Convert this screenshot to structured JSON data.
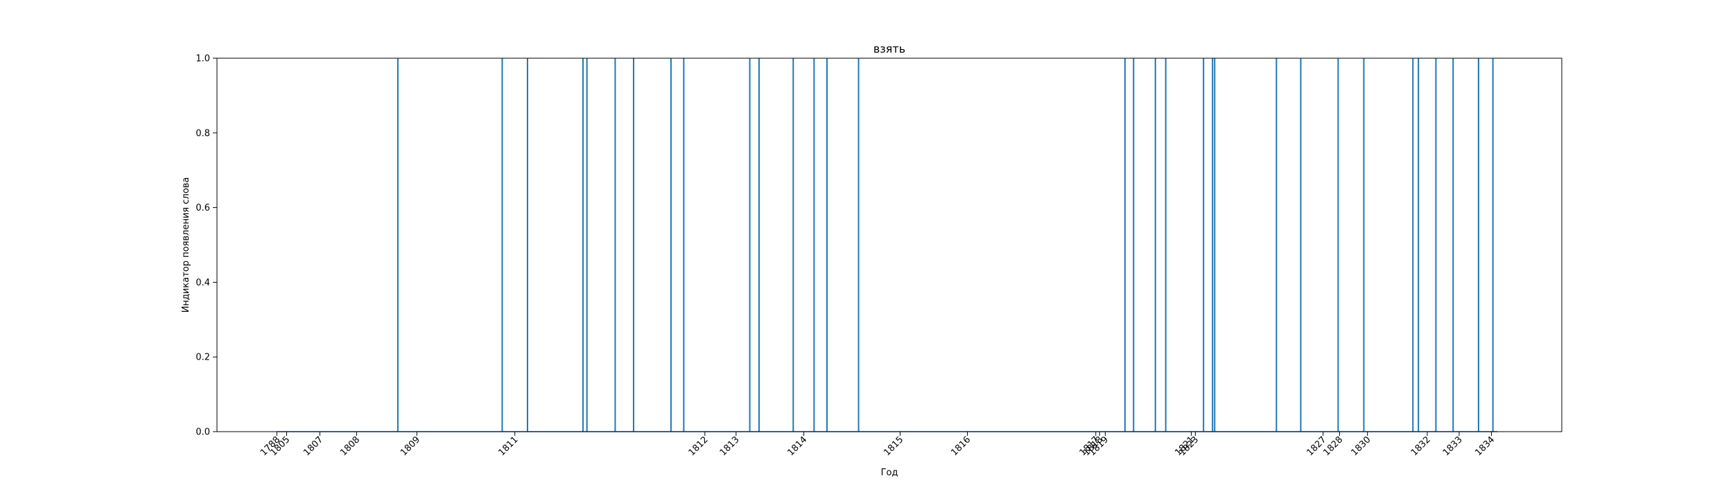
{
  "chart_data": {
    "type": "line",
    "title": "взять",
    "xlabel": "Год",
    "ylabel": "Индикатор появления слова",
    "ylim": [
      0.0,
      1.0
    ],
    "yticks": [
      "0.0",
      "0.2",
      "0.4",
      "0.6",
      "0.8",
      "1.0"
    ],
    "xticks": [
      "1788",
      "1805",
      "1807",
      "1808",
      "1809",
      "1811",
      "1812",
      "1813",
      "1814",
      "1815",
      "1816",
      "1817",
      "1818",
      "1819",
      "1821",
      "1823",
      "1827",
      "1828",
      "1830",
      "1832",
      "1833",
      "1834"
    ],
    "grid": false,
    "series": [
      {
        "color": "#1f77b4",
        "events": [
          0.1345,
          0.2121,
          0.2309,
          0.2722,
          0.2751,
          0.2961,
          0.3098,
          0.3376,
          0.3471,
          0.3962,
          0.4031,
          0.4285,
          0.444,
          0.4536,
          0.4771,
          0.6752,
          0.6816,
          0.6978,
          0.7055,
          0.7336,
          0.7403,
          0.7419,
          0.7878,
          0.8059,
          0.8337,
          0.8528,
          0.8893,
          0.8934,
          0.9064,
          0.9192,
          0.9381,
          0.9488
        ]
      }
    ]
  }
}
